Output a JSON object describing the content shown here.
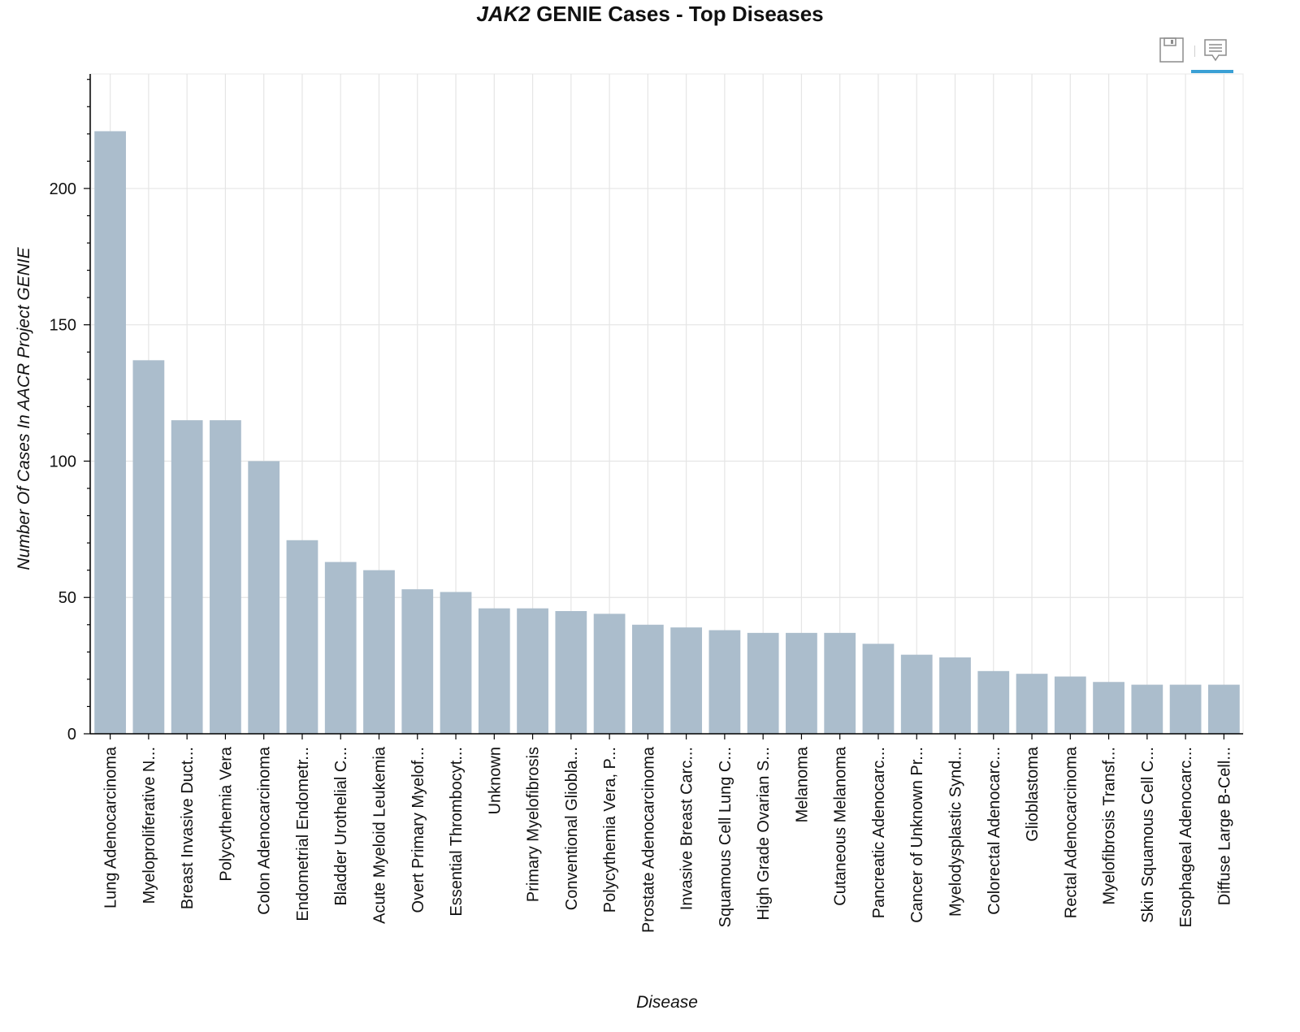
{
  "title": {
    "italic_part": "JAK2",
    "rest": " GENIE Cases - Top Diseases"
  },
  "toolbar": {
    "tools": [
      {
        "icon": "save-icon"
      },
      {
        "icon": "hover-tooltip-icon"
      }
    ],
    "active_color": "#3aa0d5"
  },
  "colors": {
    "bar": "#abbdcc",
    "grid": "#e5e5e5",
    "axis": "#000000"
  },
  "chart_data": {
    "type": "bar",
    "xlabel": "Disease",
    "ylabel": "Number Of Cases In AACR Project GENIE",
    "ylim": [
      0,
      242
    ],
    "yticks": [
      0,
      50,
      100,
      150,
      200
    ],
    "grid": true,
    "categories": [
      "Lung Adenocarcinoma",
      "Myeloproliferative N...",
      "Breast Invasive Duct...",
      "Polycythemia Vera",
      "Colon Adenocarcinoma",
      "Endometrial Endometr...",
      "Bladder Urothelial C...",
      "Acute Myeloid Leukemia",
      "Overt Primary Myelof...",
      "Essential Thrombocyt...",
      "Unknown",
      "Primary Myelofibrosis",
      "Conventional Gliobla...",
      "Polycythemia Vera, P...",
      "Prostate Adenocarcinoma",
      "Invasive Breast Carc...",
      "Squamous Cell Lung C...",
      "High Grade Ovarian S...",
      "Melanoma",
      "Cutaneous Melanoma",
      "Pancreatic Adenocarc...",
      "Cancer of Unknown Pr...",
      "Myelodysplastic Synd...",
      "Colorectal Adenocarc...",
      "Glioblastoma",
      "Rectal Adenocarcinoma",
      "Myelofibrosis Transf...",
      "Skin Squamous Cell C...",
      "Esophageal Adenocarc...",
      "Diffuse Large B-Cell..."
    ],
    "values": [
      221,
      137,
      115,
      115,
      100,
      71,
      63,
      60,
      53,
      52,
      46,
      46,
      45,
      44,
      40,
      39,
      38,
      37,
      37,
      37,
      33,
      29,
      28,
      23,
      22,
      21,
      19,
      18,
      18,
      18
    ]
  }
}
